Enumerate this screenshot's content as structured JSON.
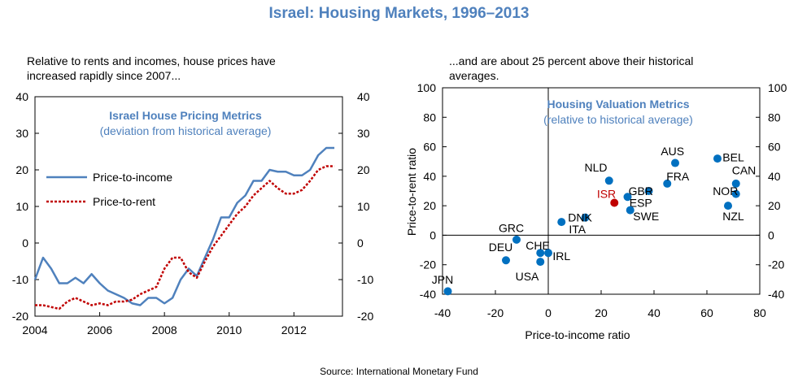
{
  "title": "Israel: Housing Markets, 1996–2013",
  "source": "Source: International Monetary Fund",
  "colors": {
    "title": "#4F81BD",
    "income": "#4F81BD",
    "rent": "#C00000",
    "point": "#0070C0",
    "isr": "#C00000",
    "inner_title": "#4F81BD"
  },
  "chart_data": [
    {
      "type": "line",
      "subtitle_line1": "Relative to rents and incomes, house prices have",
      "subtitle_line2": "increased rapidly since 2007...",
      "inner_title": "Israel House Pricing Metrics",
      "inner_subtitle": "(deviation from historical average)",
      "xlim": [
        2004,
        2013.5
      ],
      "ylim": [
        -20,
        40
      ],
      "x_ticks": [
        "2004",
        "2006",
        "2008",
        "2010",
        "2012"
      ],
      "y_ticks": [
        "40",
        "30",
        "20",
        "10",
        "0",
        "-10",
        "-20"
      ],
      "grid": false,
      "legend": "left",
      "series": [
        {
          "name": "Price-to-income",
          "style": "solid",
          "x": [
            2004.0,
            2004.25,
            2004.5,
            2004.75,
            2005.0,
            2005.25,
            2005.5,
            2005.75,
            2006.0,
            2006.25,
            2006.5,
            2006.75,
            2007.0,
            2007.25,
            2007.5,
            2007.75,
            2008.0,
            2008.25,
            2008.5,
            2008.75,
            2009.0,
            2009.25,
            2009.5,
            2009.75,
            2010.0,
            2010.25,
            2010.5,
            2010.75,
            2011.0,
            2011.25,
            2011.5,
            2011.75,
            2012.0,
            2012.25,
            2012.5,
            2012.75,
            2013.0,
            2013.25
          ],
          "values": [
            -10,
            -4,
            -7,
            -11,
            -11,
            -9.5,
            -11,
            -8.5,
            -11,
            -13,
            -14,
            -15,
            -16.5,
            -17,
            -15,
            -15,
            -16.5,
            -15,
            -10,
            -7,
            -9,
            -4,
            1,
            7,
            7,
            11,
            13,
            17,
            17,
            20,
            19.5,
            19.5,
            18.5,
            18.5,
            20,
            24,
            26,
            26
          ]
        },
        {
          "name": "Price-to-rent",
          "style": "dashed",
          "x": [
            2004.0,
            2004.25,
            2004.5,
            2004.75,
            2005.0,
            2005.25,
            2005.5,
            2005.75,
            2006.0,
            2006.25,
            2006.5,
            2006.75,
            2007.0,
            2007.25,
            2007.5,
            2007.75,
            2008.0,
            2008.25,
            2008.5,
            2008.75,
            2009.0,
            2009.25,
            2009.5,
            2009.75,
            2010.0,
            2010.25,
            2010.5,
            2010.75,
            2011.0,
            2011.25,
            2011.5,
            2011.75,
            2012.0,
            2012.25,
            2012.5,
            2012.75,
            2013.0,
            2013.25
          ],
          "values": [
            -17,
            -17,
            -17.5,
            -18,
            -16,
            -15,
            -16,
            -17,
            -16.5,
            -17,
            -16,
            -16,
            -15.5,
            -14,
            -13,
            -12,
            -7,
            -4,
            -4,
            -8,
            -9.5,
            -5,
            -1,
            2,
            5,
            8,
            10,
            13,
            15,
            17,
            15,
            13.5,
            13.5,
            14.5,
            17,
            20,
            21,
            21
          ]
        }
      ]
    },
    {
      "type": "scatter",
      "subtitle_line1": "...and are about 25 percent above their historical",
      "subtitle_line2": "averages.",
      "inner_title": "Housing Valuation Metrics",
      "inner_subtitle": "(relative to historical average)",
      "xlabel": "Price-to-income ratio",
      "ylabel": "Price-to-rent ratio",
      "xlim": [
        -40,
        80
      ],
      "ylim": [
        -40,
        100
      ],
      "x_ticks": [
        "-40",
        "-20",
        "0",
        "20",
        "40",
        "60",
        "80"
      ],
      "y_ticks": [
        "100",
        "80",
        "60",
        "40",
        "20",
        "0",
        "-20",
        "-40"
      ],
      "grid": false,
      "points": [
        {
          "label": "JPN",
          "x": -38,
          "y": -38,
          "lx": -2,
          "ly": 8,
          "anchor": "middle"
        },
        {
          "label": "DEU",
          "x": -16,
          "y": -17,
          "lx": -2,
          "ly": 9,
          "anchor": "middle"
        },
        {
          "label": "GRC",
          "x": -12,
          "y": -3,
          "lx": -2,
          "ly": 8,
          "anchor": "middle"
        },
        {
          "label": "CHE",
          "x": -3,
          "y": -12,
          "lx": -1,
          "ly": 5,
          "anchor": "middle"
        },
        {
          "label": "USA",
          "x": -3,
          "y": -18,
          "lx": -5,
          "ly": -10,
          "anchor": "middle"
        },
        {
          "label": "IRL",
          "x": 0,
          "y": -12,
          "lx": 5,
          "ly": -2,
          "anchor": "middle"
        },
        {
          "label": "ITA",
          "x": 5,
          "y": 9,
          "lx": 6,
          "ly": -5,
          "anchor": "middle"
        },
        {
          "label": "DNK",
          "x": 14,
          "y": 12,
          "lx": -2,
          "ly": 0,
          "anchor": "middle"
        },
        {
          "label": "NLD",
          "x": 23,
          "y": 37,
          "lx": -5,
          "ly": 9,
          "anchor": "middle"
        },
        {
          "label": "ISR",
          "x": 25,
          "y": 22,
          "lx": -3,
          "ly": 6,
          "anchor": "middle"
        },
        {
          "label": "ESP",
          "x": 30,
          "y": 26,
          "lx": 5,
          "ly": -4,
          "anchor": "middle"
        },
        {
          "label": "SWE",
          "x": 31,
          "y": 17,
          "lx": 6,
          "ly": -4,
          "anchor": "middle"
        },
        {
          "label": "GBR",
          "x": 38,
          "y": 30,
          "lx": -3,
          "ly": 0,
          "anchor": "middle"
        },
        {
          "label": "FRA",
          "x": 45,
          "y": 35,
          "lx": 4,
          "ly": 5,
          "anchor": "middle"
        },
        {
          "label": "AUS",
          "x": 48,
          "y": 49,
          "lx": -1,
          "ly": 8,
          "anchor": "middle"
        },
        {
          "label": "BEL",
          "x": 64,
          "y": 52,
          "lx": 6,
          "ly": 1,
          "anchor": "middle"
        },
        {
          "label": "CAN",
          "x": 71,
          "y": 35,
          "lx": 3,
          "ly": 9,
          "anchor": "middle"
        },
        {
          "label": "NOR",
          "x": 71,
          "y": 28,
          "lx": -4,
          "ly": 2,
          "anchor": "middle"
        },
        {
          "label": "NZL",
          "x": 68,
          "y": 20,
          "lx": 2,
          "ly": -7,
          "anchor": "middle"
        }
      ]
    }
  ]
}
